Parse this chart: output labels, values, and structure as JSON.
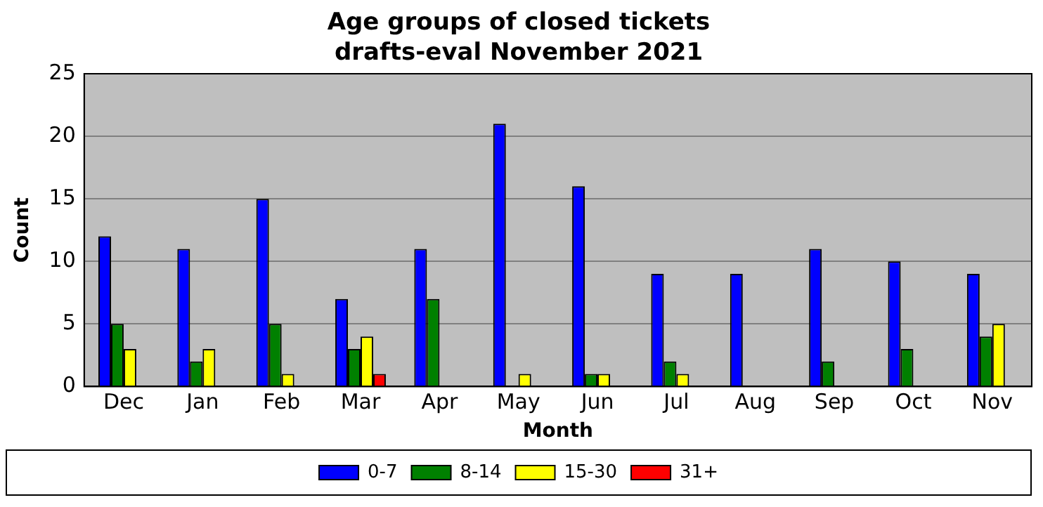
{
  "chart_data": {
    "type": "bar",
    "title": "Age groups of closed tickets\ndrafts-eval November 2021",
    "xlabel": "Month",
    "ylabel": "Count",
    "categories": [
      "Dec",
      "Jan",
      "Feb",
      "Mar",
      "Apr",
      "May",
      "Jun",
      "Jul",
      "Aug",
      "Sep",
      "Oct",
      "Nov"
    ],
    "series": [
      {
        "name": "0-7",
        "color": "#0000ff",
        "values": [
          12,
          11,
          15,
          7,
          11,
          21,
          16,
          9,
          9,
          11,
          10,
          9
        ]
      },
      {
        "name": "8-14",
        "color": "#008000",
        "values": [
          5,
          2,
          5,
          3,
          7,
          0,
          1,
          2,
          0,
          2,
          3,
          4
        ]
      },
      {
        "name": "15-30",
        "color": "#ffff00",
        "values": [
          3,
          3,
          1,
          4,
          0,
          1,
          1,
          1,
          0,
          0,
          0,
          5
        ]
      },
      {
        "name": "31+",
        "color": "#ff0000",
        "values": [
          0,
          0,
          0,
          1,
          0,
          0,
          0,
          0,
          0,
          0,
          0,
          0
        ]
      }
    ],
    "ylim": [
      0,
      25
    ],
    "yticks": [
      0,
      5,
      10,
      15,
      20,
      25
    ],
    "grid": "y",
    "legend": "bottom"
  }
}
